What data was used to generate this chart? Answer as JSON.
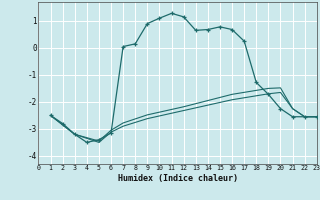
{
  "xlabel": "Humidex (Indice chaleur)",
  "bg_color": "#cce9ec",
  "line_color": "#1e6b6b",
  "grid_color": "#b8d8dc",
  "xlim": [
    0,
    23
  ],
  "ylim": [
    -4.3,
    1.7
  ],
  "xticks": [
    0,
    1,
    2,
    3,
    4,
    5,
    6,
    7,
    8,
    9,
    10,
    11,
    12,
    13,
    14,
    15,
    16,
    17,
    18,
    19,
    20,
    21,
    22,
    23
  ],
  "yticks": [
    -4,
    -3,
    -2,
    -1,
    0,
    1
  ],
  "main_x": [
    1,
    2,
    3,
    4,
    5,
    6,
    7,
    8,
    9,
    10,
    11,
    12,
    13,
    14,
    15,
    16,
    17,
    18,
    19,
    20,
    21,
    22,
    23
  ],
  "main_y": [
    -2.5,
    -2.8,
    -3.2,
    -3.5,
    -3.4,
    -3.15,
    0.05,
    0.15,
    0.9,
    1.1,
    1.28,
    1.15,
    0.65,
    0.68,
    0.78,
    0.68,
    0.25,
    -1.28,
    -1.72,
    -2.25,
    -2.55,
    -2.55,
    -2.55
  ],
  "trend1_x": [
    1,
    23
  ],
  "trend1_y": [
    -2.5,
    -2.55
  ],
  "trend2_x": [
    1,
    23
  ],
  "trend2_y": [
    -2.5,
    -2.55
  ],
  "line2_x": [
    1,
    3,
    5,
    6,
    7,
    9,
    12,
    16,
    19,
    20,
    21,
    22,
    23
  ],
  "line2_y": [
    -2.5,
    -3.2,
    -3.45,
    -3.05,
    -2.78,
    -2.48,
    -2.18,
    -1.72,
    -1.5,
    -1.48,
    -2.25,
    -2.55,
    -2.55
  ],
  "line3_x": [
    1,
    3,
    5,
    6,
    7,
    9,
    12,
    16,
    19,
    20,
    21,
    22,
    23
  ],
  "line3_y": [
    -2.5,
    -3.2,
    -3.5,
    -3.12,
    -2.9,
    -2.62,
    -2.32,
    -1.92,
    -1.7,
    -1.65,
    -2.25,
    -2.55,
    -2.55
  ]
}
